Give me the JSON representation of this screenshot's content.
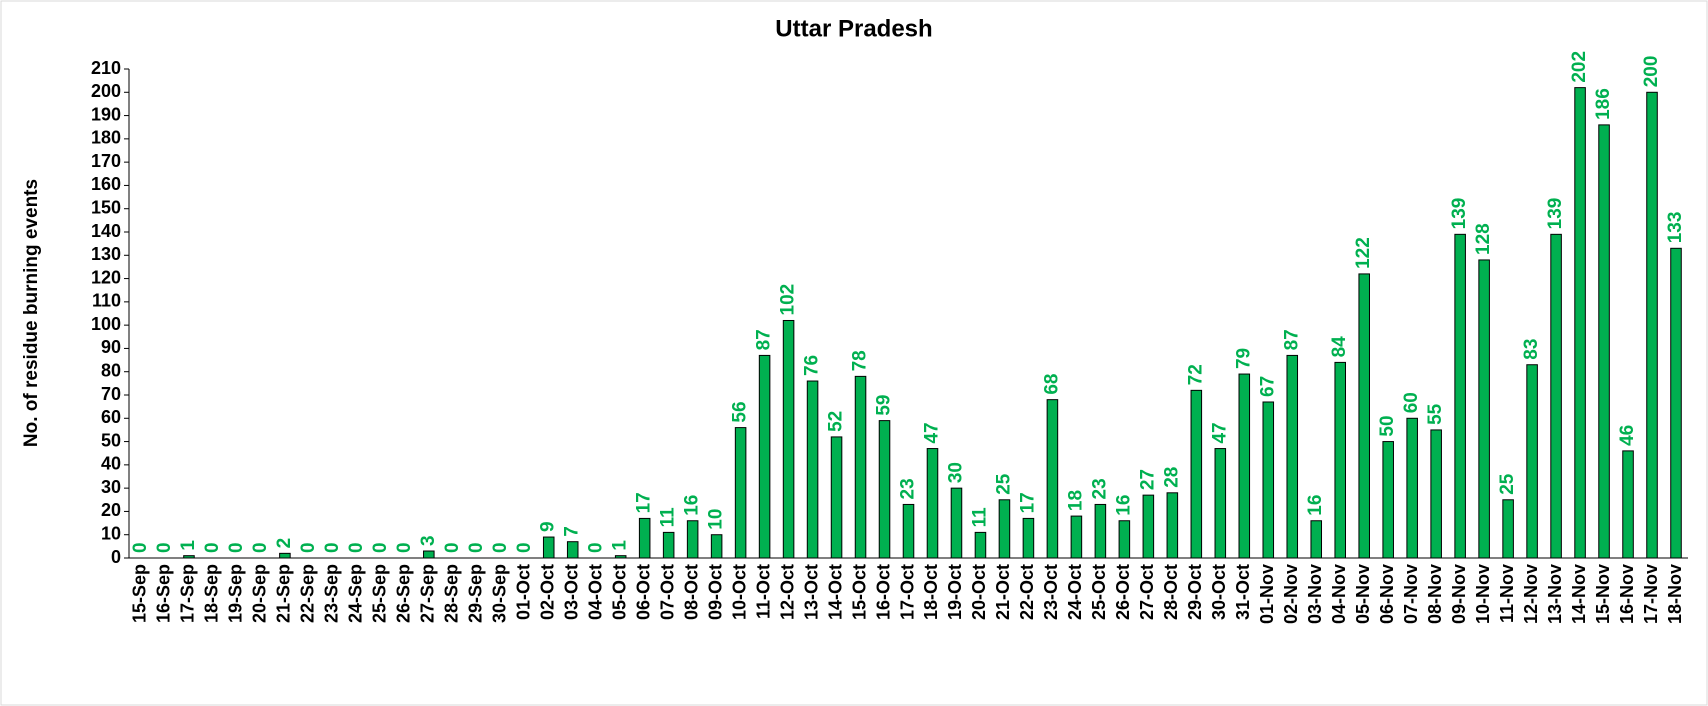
{
  "chart_data": {
    "type": "bar",
    "title": "Uttar Pradesh",
    "y_label": "No. of residue burning events",
    "categories": [
      "15-Sep",
      "16-Sep",
      "17-Sep",
      "18-Sep",
      "19-Sep",
      "20-Sep",
      "21-Sep",
      "22-Sep",
      "23-Sep",
      "24-Sep",
      "25-Sep",
      "26-Sep",
      "27-Sep",
      "28-Sep",
      "29-Sep",
      "30-Sep",
      "01-Oct",
      "02-Oct",
      "03-Oct",
      "04-Oct",
      "05-Oct",
      "06-Oct",
      "07-Oct",
      "08-Oct",
      "09-Oct",
      "10-Oct",
      "11-Oct",
      "12-Oct",
      "13-Oct",
      "14-Oct",
      "15-Oct",
      "16-Oct",
      "17-Oct",
      "18-Oct",
      "19-Oct",
      "20-Oct",
      "21-Oct",
      "22-Oct",
      "23-Oct",
      "24-Oct",
      "25-Oct",
      "26-Oct",
      "27-Oct",
      "28-Oct",
      "29-Oct",
      "30-Oct",
      "31-Oct",
      "01-Nov",
      "02-Nov",
      "03-Nov",
      "04-Nov",
      "05-Nov",
      "06-Nov",
      "07-Nov",
      "08-Nov",
      "09-Nov",
      "10-Nov",
      "11-Nov",
      "12-Nov",
      "13-Nov",
      "14-Nov",
      "15-Nov",
      "16-Nov",
      "17-Nov",
      "18-Nov"
    ],
    "values": [
      0,
      0,
      1,
      0,
      0,
      0,
      2,
      0,
      0,
      0,
      0,
      0,
      3,
      0,
      0,
      0,
      0,
      9,
      7,
      0,
      1,
      17,
      11,
      16,
      10,
      56,
      87,
      102,
      76,
      52,
      78,
      59,
      23,
      47,
      30,
      11,
      25,
      17,
      68,
      18,
      23,
      16,
      27,
      28,
      72,
      47,
      79,
      67,
      87,
      16,
      84,
      122,
      50,
      60,
      55,
      139,
      128,
      25,
      83,
      139,
      202,
      186,
      46,
      200,
      133
    ],
    "color": "#00b050",
    "label_color": "#00b050",
    "ylim": [
      0,
      210
    ],
    "yticks": [
      0,
      10,
      20,
      30,
      40,
      50,
      60,
      70,
      80,
      90,
      100,
      110,
      120,
      130,
      140,
      150,
      160,
      170,
      180,
      190,
      200,
      210
    ],
    "grid": false
  }
}
